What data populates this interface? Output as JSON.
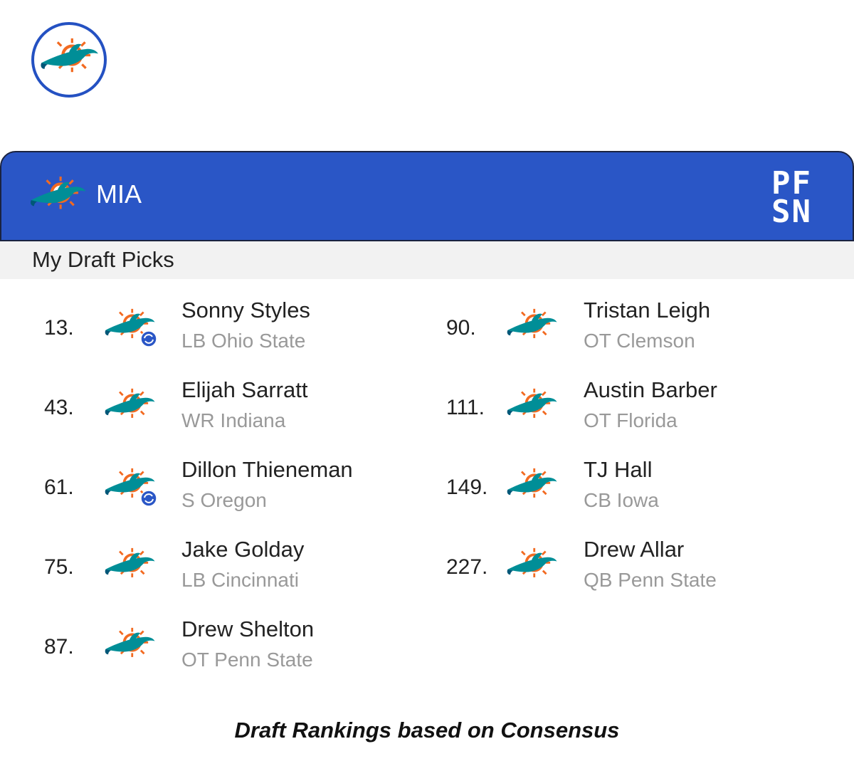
{
  "header": {
    "team": "MIA",
    "brand": [
      "PF",
      "SN"
    ]
  },
  "section_title": "My Draft Picks",
  "picks": [
    {
      "number": "13.",
      "name": "Sonny Styles",
      "details": "LB Ohio State",
      "traded": true
    },
    {
      "number": "43.",
      "name": "Elijah Sarratt",
      "details": "WR Indiana",
      "traded": false
    },
    {
      "number": "61.",
      "name": "Dillon Thieneman",
      "details": "S Oregon",
      "traded": true
    },
    {
      "number": "75.",
      "name": "Jake Golday",
      "details": "LB Cincinnati",
      "traded": false
    },
    {
      "number": "87.",
      "name": "Drew Shelton",
      "details": "OT Penn State",
      "traded": false
    },
    {
      "number": "90.",
      "name": "Tristan Leigh",
      "details": "OT Clemson",
      "traded": false
    },
    {
      "number": "111.",
      "name": "Austin Barber",
      "details": "OT Florida",
      "traded": false
    },
    {
      "number": "149.",
      "name": "TJ Hall",
      "details": "CB Iowa",
      "traded": false
    },
    {
      "number": "227.",
      "name": "Drew Allar",
      "details": "QB Penn State",
      "traded": false
    }
  ],
  "footer": "Draft Rankings based on Consensus"
}
